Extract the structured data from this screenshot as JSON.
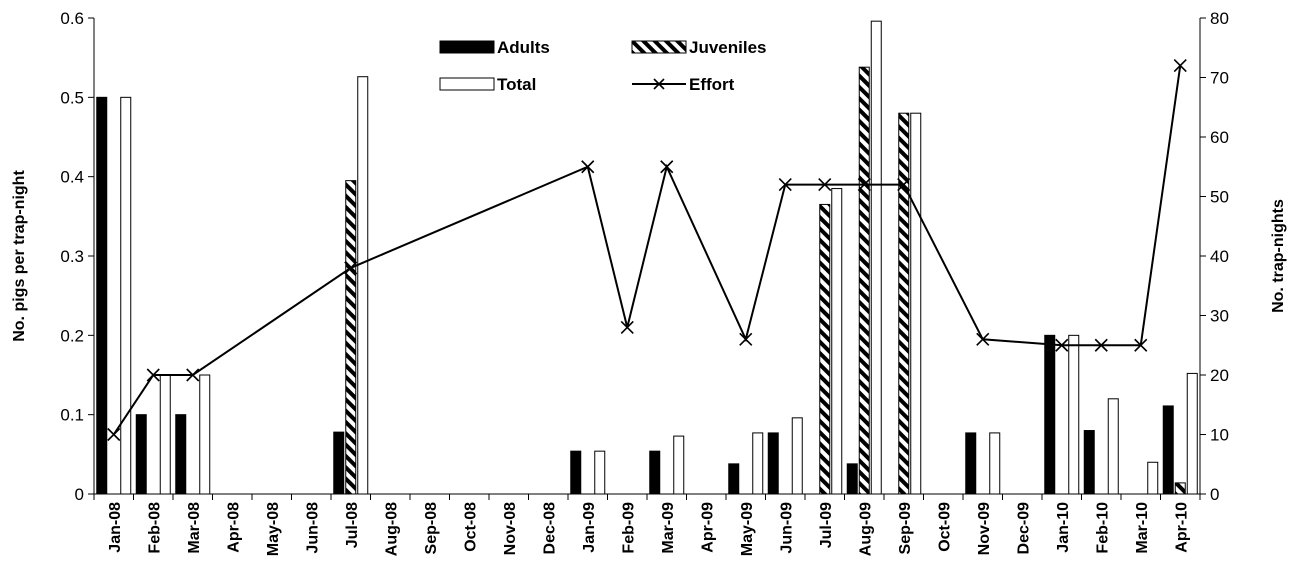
{
  "chart_data": {
    "type": "bar",
    "categories": [
      "Jan-08",
      "Feb-08",
      "Mar-08",
      "Apr-08",
      "May-08",
      "Jun-08",
      "Jul-08",
      "Aug-08",
      "Sep-08",
      "Oct-08",
      "Nov-08",
      "Dec-08",
      "Jan-09",
      "Feb-09",
      "Mar-09",
      "Apr-09",
      "May-09",
      "Jun-09",
      "Jul-09",
      "Aug-09",
      "Sep-09",
      "Oct-09",
      "Nov-09",
      "Dec-09",
      "Jan-10",
      "Feb-10",
      "Mar-10",
      "Apr-10"
    ],
    "series": [
      {
        "name": "Adults",
        "type": "bar",
        "axis": "left",
        "values": [
          0.5,
          0.1,
          0.1,
          null,
          null,
          null,
          0.078,
          null,
          null,
          null,
          null,
          null,
          0.054,
          null,
          0.054,
          null,
          0.038,
          0.077,
          null,
          0.038,
          null,
          null,
          0.077,
          null,
          0.2,
          0.08,
          null,
          0.111
        ]
      },
      {
        "name": "Juveniles",
        "type": "bar",
        "axis": "left",
        "values": [
          null,
          null,
          null,
          null,
          null,
          null,
          0.395,
          null,
          null,
          null,
          null,
          null,
          null,
          null,
          null,
          null,
          null,
          null,
          0.365,
          0.538,
          0.48,
          null,
          null,
          null,
          null,
          null,
          null,
          0.014
        ]
      },
      {
        "name": "Total",
        "type": "bar",
        "axis": "left",
        "values": [
          0.5,
          0.15,
          0.15,
          null,
          null,
          null,
          0.526,
          null,
          null,
          null,
          null,
          null,
          0.054,
          null,
          0.073,
          null,
          0.077,
          0.096,
          0.385,
          0.596,
          0.48,
          null,
          0.077,
          null,
          0.2,
          0.12,
          0.04,
          0.152
        ]
      },
      {
        "name": "Effort",
        "type": "line",
        "axis": "right",
        "values": [
          10,
          20,
          20,
          null,
          null,
          null,
          38,
          null,
          null,
          null,
          null,
          null,
          55,
          28,
          55,
          null,
          26,
          52,
          52,
          52,
          52,
          null,
          26,
          null,
          25,
          25,
          25,
          72
        ]
      }
    ],
    "ylabel": "No. pigs per trap-night",
    "y2label": "No. trap-nights",
    "ylim": [
      0,
      0.6
    ],
    "y2lim": [
      0,
      80
    ],
    "yticks": [
      "0",
      "0.1",
      "0.2",
      "0.3",
      "0.4",
      "0.5",
      "0.6"
    ],
    "y2ticks": [
      "0",
      "10",
      "20",
      "30",
      "40",
      "50",
      "60",
      "70",
      "80"
    ],
    "legend_position": "top-center",
    "grid": false,
    "colors": {
      "adults": "#000000",
      "juveniles_hatch": "#000000",
      "total": "#ffffff",
      "effort": "#000000"
    }
  }
}
